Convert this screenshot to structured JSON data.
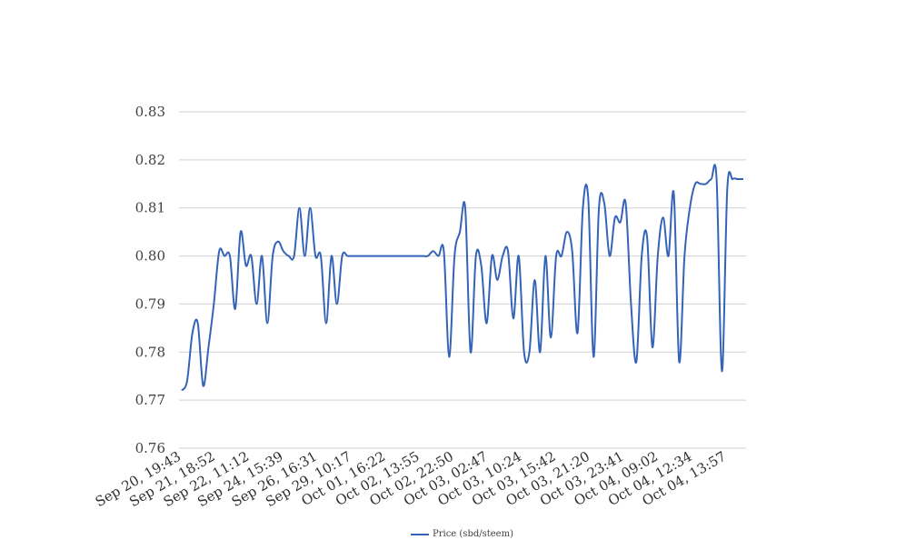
{
  "chart_data": {
    "type": "line",
    "title": "",
    "xlabel": "",
    "ylabel": "",
    "ylim": [
      0.76,
      0.83
    ],
    "yticks": [
      "0.76",
      "0.77",
      "0.78",
      "0.79",
      "0.80",
      "0.81",
      "0.82",
      "0.83"
    ],
    "xtick_labels": [
      "Sep 20, 19:43",
      "Sep 21, 18:52",
      "Sep 22, 11:12",
      "Sep 24, 15:39",
      "Sep 26, 16:31",
      "Sep 29, 10:17",
      "Oct 01, 16:22",
      "Oct 02, 13:55",
      "Oct 02, 22:50",
      "Oct 03, 02:47",
      "Oct 03, 10:24",
      "Oct 03, 15:42",
      "Oct 03, 21:20",
      "Oct 03, 23:41",
      "Oct 04, 09:02",
      "Oct 04, 12:34",
      "Oct 04, 13:57"
    ],
    "grid": true,
    "legend_position": "bottom",
    "series": [
      {
        "name": "Price (sbd/steem)",
        "color": "#3563b8",
        "values": [
          0.772,
          0.774,
          0.784,
          0.786,
          0.773,
          0.781,
          0.79,
          0.801,
          0.8,
          0.8,
          0.789,
          0.805,
          0.798,
          0.8,
          0.79,
          0.8,
          0.786,
          0.8,
          0.803,
          0.801,
          0.8,
          0.8,
          0.81,
          0.8,
          0.81,
          0.8,
          0.8,
          0.786,
          0.8,
          0.79,
          0.8,
          0.8,
          0.8,
          0.8,
          0.8,
          0.8,
          0.8,
          0.8,
          0.8,
          0.8,
          0.8,
          0.8,
          0.8,
          0.8,
          0.8,
          0.8,
          0.8,
          0.801,
          0.8,
          0.801,
          0.779,
          0.8,
          0.805,
          0.81,
          0.78,
          0.8,
          0.798,
          0.786,
          0.8,
          0.795,
          0.8,
          0.801,
          0.787,
          0.8,
          0.78,
          0.78,
          0.795,
          0.78,
          0.8,
          0.783,
          0.8,
          0.8,
          0.805,
          0.801,
          0.784,
          0.81,
          0.812,
          0.779,
          0.81,
          0.811,
          0.8,
          0.808,
          0.807,
          0.811,
          0.79,
          0.778,
          0.8,
          0.804,
          0.781,
          0.8,
          0.808,
          0.8,
          0.813,
          0.778,
          0.8,
          0.81,
          0.815,
          0.815,
          0.815,
          0.816,
          0.816,
          0.776,
          0.814,
          0.816,
          0.816,
          0.816
        ]
      }
    ]
  }
}
